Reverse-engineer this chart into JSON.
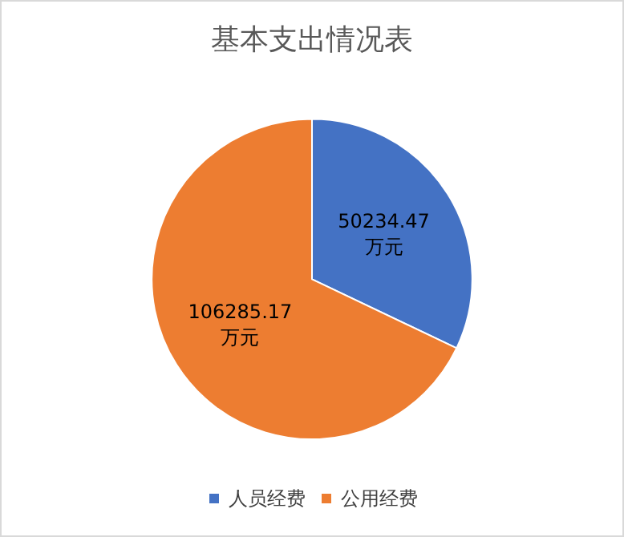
{
  "chart_data": {
    "type": "pie",
    "title": "基本支出情况表",
    "categories": [
      "人员经费",
      "公用经费"
    ],
    "values": [
      50234.47,
      106285.17
    ],
    "colors": [
      "#4472c4",
      "#ed7d31"
    ],
    "value_labels": [
      "50234.47\n万元",
      "106285.17\n万元"
    ],
    "legend": "bottom"
  }
}
